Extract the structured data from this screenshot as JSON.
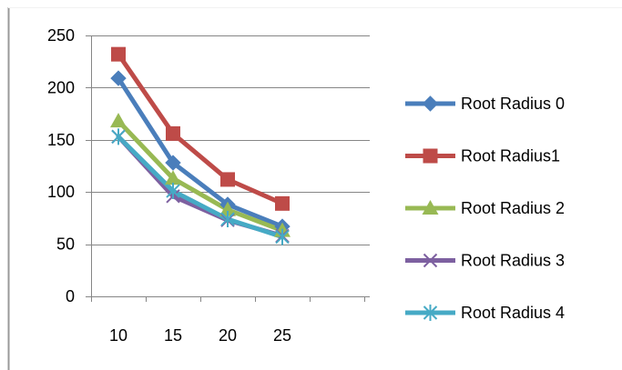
{
  "chart_data": {
    "type": "line",
    "title": "",
    "xlabel": "",
    "ylabel": "",
    "categories": [
      "10",
      "15",
      "20",
      "25"
    ],
    "ylim": [
      0,
      250
    ],
    "y_ticks": [
      "0",
      "50",
      "100",
      "150",
      "200",
      "250"
    ],
    "grid": true,
    "legend_position": "right",
    "series": [
      {
        "name": "Root Radius 0",
        "color": "#4a7ebb",
        "marker": "diamond",
        "values": [
          209,
          128,
          88,
          67
        ]
      },
      {
        "name": "Root Radius1",
        "color": "#be4b48",
        "marker": "square",
        "values": [
          232,
          156,
          112,
          89
        ]
      },
      {
        "name": "Root Radius 2",
        "color": "#98b954",
        "marker": "triangle",
        "values": [
          168,
          113,
          83,
          63
        ]
      },
      {
        "name": "Root Radius 3",
        "color": "#7d60a0",
        "marker": "x",
        "values": [
          153,
          96,
          73,
          58
        ]
      },
      {
        "name": "Root Radius 4",
        "color": "#46aac5",
        "marker": "asterisk",
        "values": [
          153,
          101,
          74,
          57
        ]
      }
    ]
  }
}
